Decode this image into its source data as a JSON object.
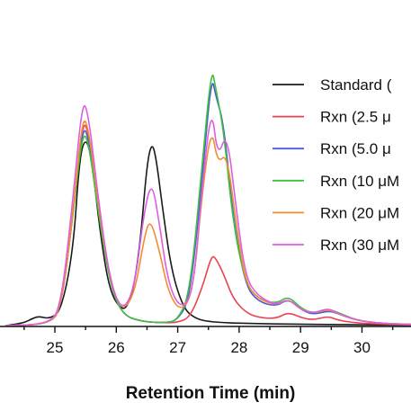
{
  "chart_data": {
    "type": "line",
    "title": "",
    "xlabel": "Retention Time (min)",
    "ylabel": "",
    "xlim": [
      24.2,
      31.0
    ],
    "ylim": [
      0,
      1.0
    ],
    "xticks": [
      25,
      26,
      27,
      28,
      29,
      30
    ],
    "grid": false,
    "legend": {
      "placement": "right"
    },
    "series": [
      {
        "name": "Standard (",
        "color": "#1a1a1a",
        "x": [
          24.2,
          24.5,
          24.65,
          24.75,
          24.9,
          25.1,
          25.3,
          25.4,
          25.5,
          25.6,
          25.75,
          25.9,
          26.1,
          26.2,
          26.3,
          26.4,
          26.5,
          26.58,
          26.65,
          26.75,
          26.9,
          27.1,
          27.3,
          27.5,
          27.8,
          28.2,
          28.6,
          29.0,
          29.5,
          30.0,
          30.5,
          31.0
        ],
        "y": [
          0.0,
          0.01,
          0.028,
          0.034,
          0.025,
          0.05,
          0.28,
          0.62,
          0.7,
          0.62,
          0.32,
          0.12,
          0.055,
          0.08,
          0.16,
          0.33,
          0.6,
          0.68,
          0.62,
          0.44,
          0.2,
          0.06,
          0.025,
          0.015,
          0.01,
          0.008,
          0.006,
          0.005,
          0.004,
          0.003,
          0.002,
          0.002
        ]
      },
      {
        "name": "Rxn (2.5 μ",
        "color": "#e8434f",
        "x": [
          24.2,
          24.9,
          25.1,
          25.3,
          25.45,
          25.55,
          25.7,
          25.9,
          26.1,
          26.4,
          26.8,
          27.0,
          27.2,
          27.4,
          27.55,
          27.62,
          27.75,
          27.9,
          28.1,
          28.3,
          28.6,
          28.8,
          29.0,
          29.2,
          29.45,
          29.6,
          29.9,
          30.3,
          31.0
        ],
        "y": [
          0.0,
          0.005,
          0.06,
          0.42,
          0.76,
          0.72,
          0.45,
          0.15,
          0.04,
          0.015,
          0.01,
          0.012,
          0.03,
          0.14,
          0.26,
          0.25,
          0.19,
          0.1,
          0.05,
          0.03,
          0.025,
          0.05,
          0.03,
          0.02,
          0.035,
          0.02,
          0.01,
          0.005,
          0.002
        ]
      },
      {
        "name": "Rxn (5.0 μ",
        "color": "#4a5bd6",
        "x": [
          24.2,
          24.9,
          25.1,
          25.3,
          25.45,
          25.55,
          25.7,
          25.9,
          26.1,
          26.4,
          26.8,
          27.0,
          27.2,
          27.4,
          27.55,
          27.62,
          27.75,
          27.9,
          28.1,
          28.3,
          28.6,
          28.8,
          29.0,
          29.2,
          29.45,
          29.6,
          29.9,
          30.3,
          31.0
        ],
        "y": [
          0.0,
          0.005,
          0.06,
          0.42,
          0.74,
          0.7,
          0.44,
          0.15,
          0.04,
          0.015,
          0.01,
          0.02,
          0.1,
          0.55,
          0.93,
          0.85,
          0.75,
          0.4,
          0.15,
          0.09,
          0.07,
          0.1,
          0.06,
          0.04,
          0.055,
          0.045,
          0.02,
          0.008,
          0.003
        ]
      },
      {
        "name": "Rxn (10 μM",
        "color": "#3fbf3f",
        "x": [
          24.2,
          24.9,
          25.1,
          25.3,
          25.45,
          25.55,
          25.7,
          25.9,
          26.1,
          26.4,
          26.8,
          27.0,
          27.2,
          27.4,
          27.55,
          27.62,
          27.75,
          27.9,
          28.1,
          28.3,
          28.6,
          28.8,
          29.0,
          29.2,
          29.45,
          29.6,
          29.9,
          30.3,
          31.0
        ],
        "y": [
          0.0,
          0.005,
          0.06,
          0.42,
          0.72,
          0.68,
          0.43,
          0.15,
          0.04,
          0.015,
          0.01,
          0.02,
          0.12,
          0.6,
          0.96,
          0.88,
          0.72,
          0.38,
          0.16,
          0.1,
          0.08,
          0.11,
          0.065,
          0.045,
          0.06,
          0.05,
          0.02,
          0.008,
          0.003
        ]
      },
      {
        "name": "Rxn (20 μM",
        "color": "#f28c30",
        "x": [
          24.2,
          24.9,
          25.1,
          25.3,
          25.45,
          25.55,
          25.7,
          25.9,
          26.1,
          26.3,
          26.45,
          26.55,
          26.7,
          26.85,
          27.05,
          27.25,
          27.4,
          27.55,
          27.65,
          27.8,
          27.95,
          28.1,
          28.3,
          28.6,
          28.8,
          29.0,
          29.2,
          29.45,
          29.6,
          29.9,
          30.3,
          31.0
        ],
        "y": [
          0.0,
          0.005,
          0.06,
          0.42,
          0.78,
          0.73,
          0.46,
          0.16,
          0.05,
          0.12,
          0.32,
          0.4,
          0.28,
          0.12,
          0.05,
          0.12,
          0.5,
          0.74,
          0.6,
          0.64,
          0.38,
          0.16,
          0.1,
          0.075,
          0.1,
          0.06,
          0.045,
          0.06,
          0.045,
          0.02,
          0.008,
          0.003
        ]
      },
      {
        "name": "Rxn (30 μM",
        "color": "#dd5fe0",
        "x": [
          24.2,
          24.9,
          25.1,
          25.3,
          25.45,
          25.55,
          25.7,
          25.9,
          26.1,
          26.3,
          26.45,
          26.58,
          26.7,
          26.85,
          27.05,
          27.25,
          27.4,
          27.55,
          27.65,
          27.8,
          27.95,
          28.1,
          28.3,
          28.6,
          28.8,
          29.0,
          29.2,
          29.45,
          29.6,
          29.9,
          30.3,
          31.0
        ],
        "y": [
          0.0,
          0.005,
          0.07,
          0.48,
          0.84,
          0.78,
          0.48,
          0.16,
          0.05,
          0.14,
          0.42,
          0.54,
          0.38,
          0.15,
          0.06,
          0.12,
          0.52,
          0.82,
          0.62,
          0.72,
          0.44,
          0.18,
          0.11,
          0.075,
          0.1,
          0.06,
          0.045,
          0.065,
          0.045,
          0.02,
          0.008,
          0.003
        ]
      }
    ]
  }
}
